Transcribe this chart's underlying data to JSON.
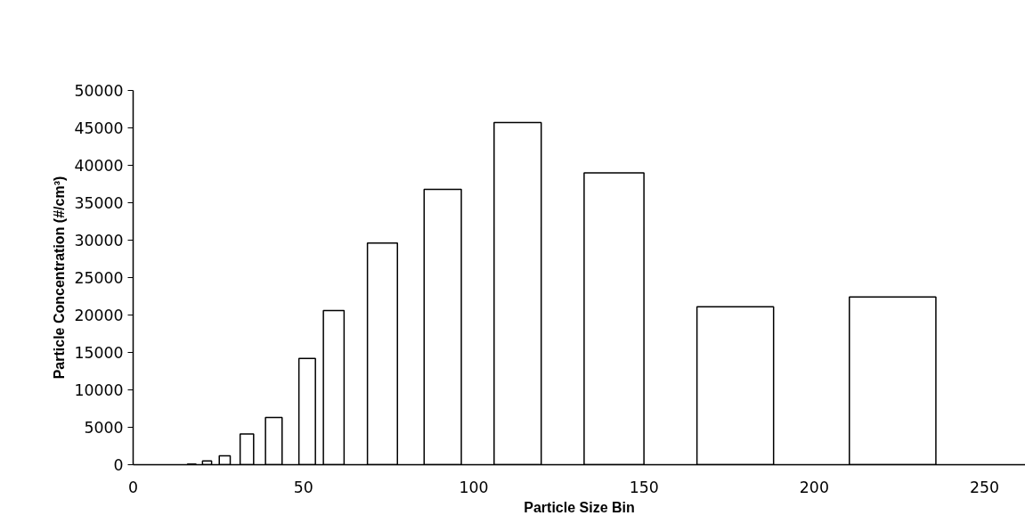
{
  "chart_data": {
    "type": "bar",
    "xlabel": "Particle Size Bin",
    "ylabel": "Particle Concentration (#/cm³)",
    "x": [
      17.2,
      21.7,
      26.9,
      33.4,
      41.3,
      51.1,
      58.9,
      73.2,
      90.9,
      112.9,
      141.2,
      176.8,
      223
    ],
    "values": [
      100,
      500,
      1200,
      4100,
      6300,
      14200,
      20600,
      29600,
      36800,
      45700,
      39000,
      21100,
      22400
    ],
    "color": "#ffffff",
    "xlim": [
      0,
      262
    ],
    "xticks": [
      0,
      50,
      100,
      150,
      200,
      250
    ],
    "ylim": [
      0,
      50000
    ],
    "yticks": [
      0,
      5000,
      10000,
      15000,
      20000,
      25000,
      30000,
      35000,
      40000,
      45000,
      50000
    ],
    "grid": false
  }
}
